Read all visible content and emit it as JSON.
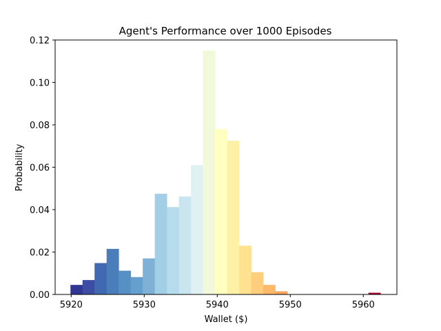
{
  "chart_data": {
    "type": "bar",
    "title": "Agent's Performance over 1000 Episodes",
    "xlabel": "Wallet ($)",
    "ylabel": "Probability",
    "xlim": [
      5917.8,
      5964.6
    ],
    "ylim": [
      0,
      0.12
    ],
    "bin_width": 1.65,
    "x_ticks": [
      5920,
      5930,
      5940,
      5950,
      5960
    ],
    "x_tick_labels": [
      "5920",
      "5930",
      "5940",
      "5950",
      "5960"
    ],
    "y_ticks": [
      0,
      0.02,
      0.04,
      0.06,
      0.08,
      0.1,
      0.12
    ],
    "y_tick_labels": [
      "0.00",
      "0.02",
      "0.04",
      "0.06",
      "0.08",
      "0.10",
      "0.12"
    ],
    "bins": [
      {
        "start": 5919.9,
        "value": 0.0045,
        "color": "#313695"
      },
      {
        "start": 5921.55,
        "value": 0.0068,
        "color": "#3b4ea3"
      },
      {
        "start": 5923.2,
        "value": 0.0148,
        "color": "#4169b1"
      },
      {
        "start": 5924.85,
        "value": 0.0215,
        "color": "#4a7ebb"
      },
      {
        "start": 5926.5,
        "value": 0.0112,
        "color": "#5690c4"
      },
      {
        "start": 5928.15,
        "value": 0.0082,
        "color": "#649fcd"
      },
      {
        "start": 5929.8,
        "value": 0.017,
        "color": "#7fb1d6"
      },
      {
        "start": 5931.45,
        "value": 0.0475,
        "color": "#a2cfe5"
      },
      {
        "start": 5933.1,
        "value": 0.0412,
        "color": "#b6dbea"
      },
      {
        "start": 5934.75,
        "value": 0.0462,
        "color": "#c9e6f0"
      },
      {
        "start": 5936.4,
        "value": 0.061,
        "color": "#dff1f2"
      },
      {
        "start": 5938.05,
        "value": 0.115,
        "color": "#f1f9da"
      },
      {
        "start": 5939.7,
        "value": 0.078,
        "color": "#ffffc0"
      },
      {
        "start": 5941.35,
        "value": 0.0725,
        "color": "#fdf1a6"
      },
      {
        "start": 5943.0,
        "value": 0.023,
        "color": "#fee28f"
      },
      {
        "start": 5944.65,
        "value": 0.0105,
        "color": "#fece7c"
      },
      {
        "start": 5946.3,
        "value": 0.0045,
        "color": "#fdb96a"
      },
      {
        "start": 5947.95,
        "value": 0.0015,
        "color": "#fca55d"
      },
      {
        "start": 5960.7,
        "value": 0.0008,
        "color": "#a50026"
      }
    ]
  }
}
